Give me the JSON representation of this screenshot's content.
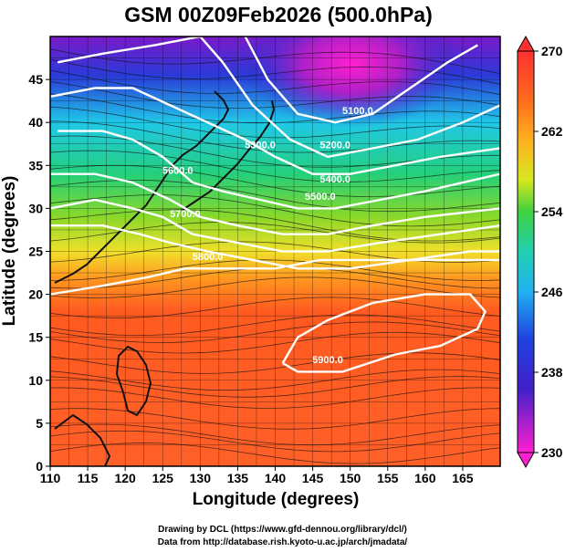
{
  "chart_data": {
    "type": "map",
    "title": "GSM 00Z09Feb2026 (500.0hPa)",
    "xlabel": "Longitude (degrees)",
    "ylabel": "Latitude  (degrees)",
    "xlim": [
      110,
      170
    ],
    "ylim": [
      0,
      50
    ],
    "x_ticks": [
      "110",
      "115",
      "120",
      "125",
      "130",
      "135",
      "140",
      "145",
      "150",
      "155",
      "160",
      "165"
    ],
    "y_ticks": [
      "0",
      "5",
      "10",
      "15",
      "20",
      "25",
      "30",
      "35",
      "40",
      "45"
    ],
    "colorbar": {
      "min": 230,
      "max": 270,
      "labels": [
        "270",
        "262",
        "254",
        "246",
        "238",
        "230"
      ],
      "colors": [
        "#ff3030",
        "#ff6a1e",
        "#ffb020",
        "#f2e820",
        "#9ee020",
        "#2ed040",
        "#20d0a0",
        "#20c8e8",
        "#2080f0",
        "#2030d0",
        "#7020c0",
        "#d020c0",
        "#ff20d0"
      ]
    },
    "fields": {
      "shaded": "temperature (K)",
      "contours": "geopotential height (m)",
      "vectors": "wind streamlines"
    },
    "contour_labels": [
      {
        "text": "5100.0",
        "lon": 151,
        "lat": 41
      },
      {
        "text": "5200.0",
        "lon": 148,
        "lat": 37
      },
      {
        "text": "5400.0",
        "lon": 148,
        "lat": 33
      },
      {
        "text": "5500.0",
        "lon": 146,
        "lat": 31
      },
      {
        "text": "5300.0",
        "lon": 138,
        "lat": 37
      },
      {
        "text": "5600.0",
        "lon": 127,
        "lat": 34
      },
      {
        "text": "5700.0",
        "lon": 128,
        "lat": 29
      },
      {
        "text": "5800.0",
        "lon": 131,
        "lat": 24
      },
      {
        "text": "5900.0",
        "lon": 147,
        "lat": 12
      }
    ],
    "contours": [
      {
        "value": 5100,
        "points": [
          [
            136,
            50
          ],
          [
            139,
            45
          ],
          [
            143,
            41
          ],
          [
            148,
            40
          ],
          [
            153,
            41
          ],
          [
            158,
            44
          ],
          [
            163,
            47
          ],
          [
            167,
            49
          ]
        ]
      },
      {
        "value": 5200,
        "points": [
          [
            111,
            47
          ],
          [
            117,
            48
          ],
          [
            124,
            49
          ],
          [
            130,
            50
          ],
          [
            133,
            47
          ],
          [
            137,
            42
          ],
          [
            142,
            38
          ],
          [
            147,
            36
          ],
          [
            153,
            37
          ],
          [
            159,
            38
          ],
          [
            165,
            40
          ],
          [
            170,
            42
          ]
        ]
      },
      {
        "value": 5300,
        "points": [
          [
            110,
            43
          ],
          [
            116,
            44
          ],
          [
            121,
            44
          ],
          [
            126,
            42
          ],
          [
            131,
            40
          ],
          [
            136,
            38
          ],
          [
            140,
            36
          ],
          [
            145,
            34
          ],
          [
            150,
            34
          ],
          [
            156,
            35
          ],
          [
            162,
            36
          ],
          [
            170,
            37
          ]
        ]
      },
      {
        "value": 5400,
        "points": [
          [
            111,
            39
          ],
          [
            117,
            39
          ],
          [
            121,
            38
          ],
          [
            125,
            36
          ],
          [
            129,
            33
          ],
          [
            133,
            32
          ],
          [
            138,
            31
          ],
          [
            143,
            30
          ],
          [
            148,
            30
          ],
          [
            154,
            31
          ],
          [
            160,
            32
          ],
          [
            170,
            34
          ]
        ]
      },
      {
        "value": 5500,
        "points": [
          [
            110,
            34
          ],
          [
            116,
            34
          ],
          [
            121,
            33
          ],
          [
            126,
            31
          ],
          [
            130,
            29
          ],
          [
            135,
            28
          ],
          [
            141,
            27
          ],
          [
            147,
            27
          ],
          [
            153,
            28
          ],
          [
            160,
            29
          ],
          [
            170,
            30
          ]
        ]
      },
      {
        "value": 5600,
        "points": [
          [
            110,
            30
          ],
          [
            116,
            31
          ],
          [
            121,
            30
          ],
          [
            125,
            29
          ],
          [
            129,
            27
          ],
          [
            135,
            26
          ],
          [
            141,
            25
          ],
          [
            147,
            25
          ],
          [
            154,
            26
          ],
          [
            162,
            27
          ],
          [
            170,
            28
          ]
        ]
      },
      {
        "value": 5700,
        "points": [
          [
            110,
            28
          ],
          [
            117,
            28
          ],
          [
            122,
            27
          ],
          [
            126,
            26
          ],
          [
            131,
            25
          ],
          [
            137,
            24
          ],
          [
            143,
            23
          ],
          [
            150,
            23
          ],
          [
            158,
            24
          ],
          [
            166,
            25
          ],
          [
            170,
            25
          ]
        ]
      },
      {
        "value": 5800,
        "points": [
          [
            110,
            20
          ],
          [
            117,
            21
          ],
          [
            123,
            22
          ],
          [
            128,
            23
          ],
          [
            134,
            23
          ],
          [
            140,
            23
          ],
          [
            146,
            24
          ],
          [
            153,
            24
          ],
          [
            160,
            24
          ],
          [
            170,
            24
          ]
        ]
      },
      {
        "value": 5900,
        "points": [
          [
            141,
            12
          ],
          [
            143,
            15
          ],
          [
            147,
            17
          ],
          [
            153,
            19
          ],
          [
            160,
            20
          ],
          [
            166,
            20
          ],
          [
            168,
            18
          ],
          [
            167,
            16
          ],
          [
            162,
            14
          ],
          [
            156,
            13
          ],
          [
            149,
            11
          ],
          [
            143,
            11
          ],
          [
            141,
            12
          ]
        ]
      }
    ]
  }
}
